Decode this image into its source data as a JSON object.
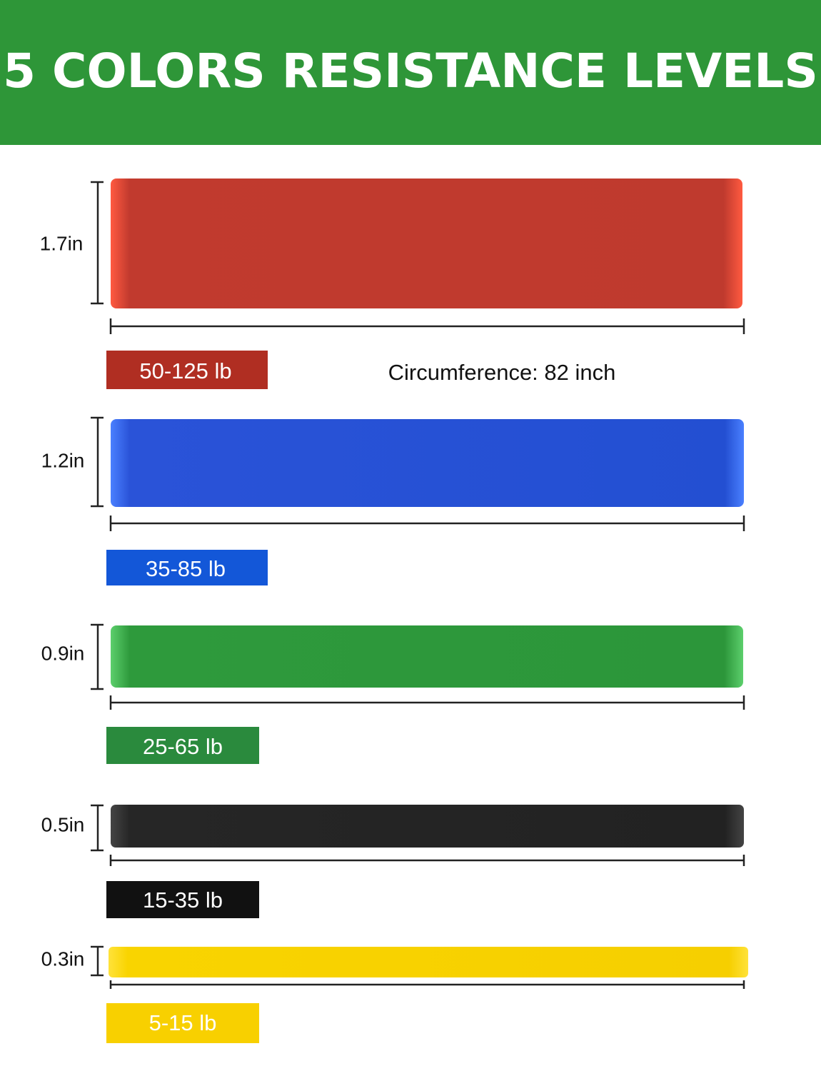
{
  "header": {
    "title": "5 COLORS RESISTANCE LEVELS"
  },
  "circumference": "Circumference: 82 inch",
  "bands": [
    {
      "width": "1.7in",
      "resistance": "50-125 lb"
    },
    {
      "width": "1.2in",
      "resistance": "35-85 lb"
    },
    {
      "width": "0.9in",
      "resistance": "25-65 lb"
    },
    {
      "width": "0.5in",
      "resistance": "15-35 lb"
    },
    {
      "width": "0.3in",
      "resistance": "5-15 lb"
    }
  ]
}
